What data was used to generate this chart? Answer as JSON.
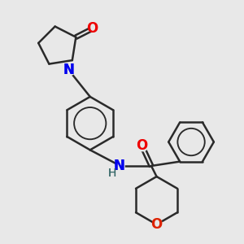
{
  "background_color": "#e8e8e8",
  "bond_color": "#2a2a2a",
  "N_color": "#0000ee",
  "O_color": "#ee0000",
  "O_ring_color": "#dd2200",
  "line_width": 1.8,
  "font_size_atoms": 11,
  "fig_width": 3.0,
  "fig_height": 3.0,
  "dpi": 100,
  "xlim": [
    0,
    10
  ],
  "ylim": [
    0,
    10
  ]
}
